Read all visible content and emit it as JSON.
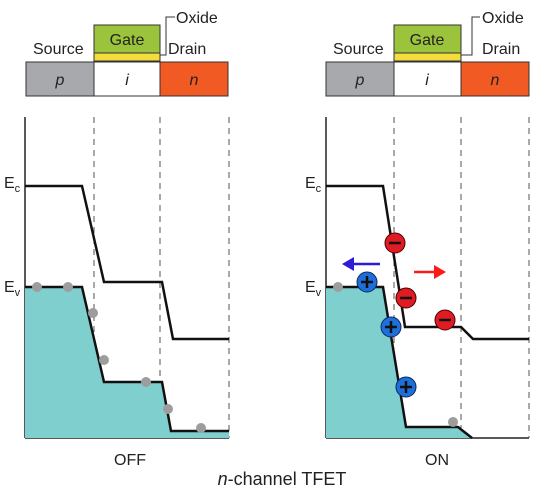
{
  "caption": {
    "prefix": "n",
    "suffix": "-channel TFET"
  },
  "colors": {
    "p_region": "#a7a9ac",
    "i_region": "#ffffff",
    "n_region": "#f15a22",
    "gate": "#9bc43c",
    "oxide": "#f4dc3c",
    "valence_fill": "#7ecfcd",
    "band_line": "#111111",
    "hole_dot": "#9d9d9d",
    "electron": "#e01b24",
    "hole_carrier": "#1e6fd9",
    "electron_arrow": "#ff1a1a",
    "hole_arrow": "#2e1bd6"
  },
  "device": {
    "source_label": "Source",
    "drain_label": "Drain",
    "gate_label": "Gate",
    "oxide_label": "Oxide",
    "regions": [
      "p",
      "i",
      "n"
    ]
  },
  "energy_labels": {
    "conduction": {
      "main": "E",
      "sub": "c"
    },
    "valence": {
      "main": "E",
      "sub": "v"
    }
  },
  "panels": [
    {
      "state": "OFF"
    },
    {
      "state": "ON"
    }
  ],
  "carriers": {
    "electron_symbol": "−",
    "hole_symbol": "+"
  }
}
